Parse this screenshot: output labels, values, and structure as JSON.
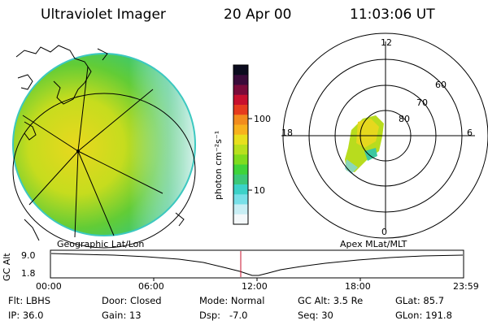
{
  "header": {
    "instrument": "Ultraviolet Imager",
    "date": "20 Apr 00",
    "time": "11:03:06 UT"
  },
  "colorbar": {
    "unit_label": "photon cm⁻²s⁻¹",
    "tick_labels": [
      "100",
      "10"
    ],
    "colors": [
      "#0b0b1e",
      "#3a0b3a",
      "#7a0b3a",
      "#c8102e",
      "#e63c1e",
      "#f28c1e",
      "#f7b21e",
      "#e8df1e",
      "#b8e01e",
      "#7fdc1e",
      "#3fd43a",
      "#3cc878",
      "#3cd2c8",
      "#78e0e8",
      "#c8eef4",
      "#f4f8fa"
    ]
  },
  "polar_plot": {
    "mlt_labels": [
      "12",
      "18",
      "6",
      "0"
    ],
    "mlat_labels": [
      "60",
      "70",
      "80"
    ]
  },
  "timeline": {
    "left_caption": "Geographic Lat/Lon",
    "right_caption": "Apex MLat/MLT",
    "y_label": "GC Alt",
    "y_ticks": [
      "9.0",
      "1.8"
    ],
    "x_ticks": [
      "00:00",
      "06:00",
      "12:00",
      "18:00",
      "23:59"
    ]
  },
  "info": {
    "flt": "Flt: LBHS",
    "ip": "IP: 36.0",
    "door": "Door: Closed",
    "gain": "Gain: 13",
    "mode": "Mode: Normal",
    "dsp": "Dsp:   -7.0",
    "gc_alt": "GC Alt: 3.5 Re",
    "seq": "Seq: 30",
    "glat": "GLat: 85.7",
    "glon": "GLon: 191.8"
  }
}
